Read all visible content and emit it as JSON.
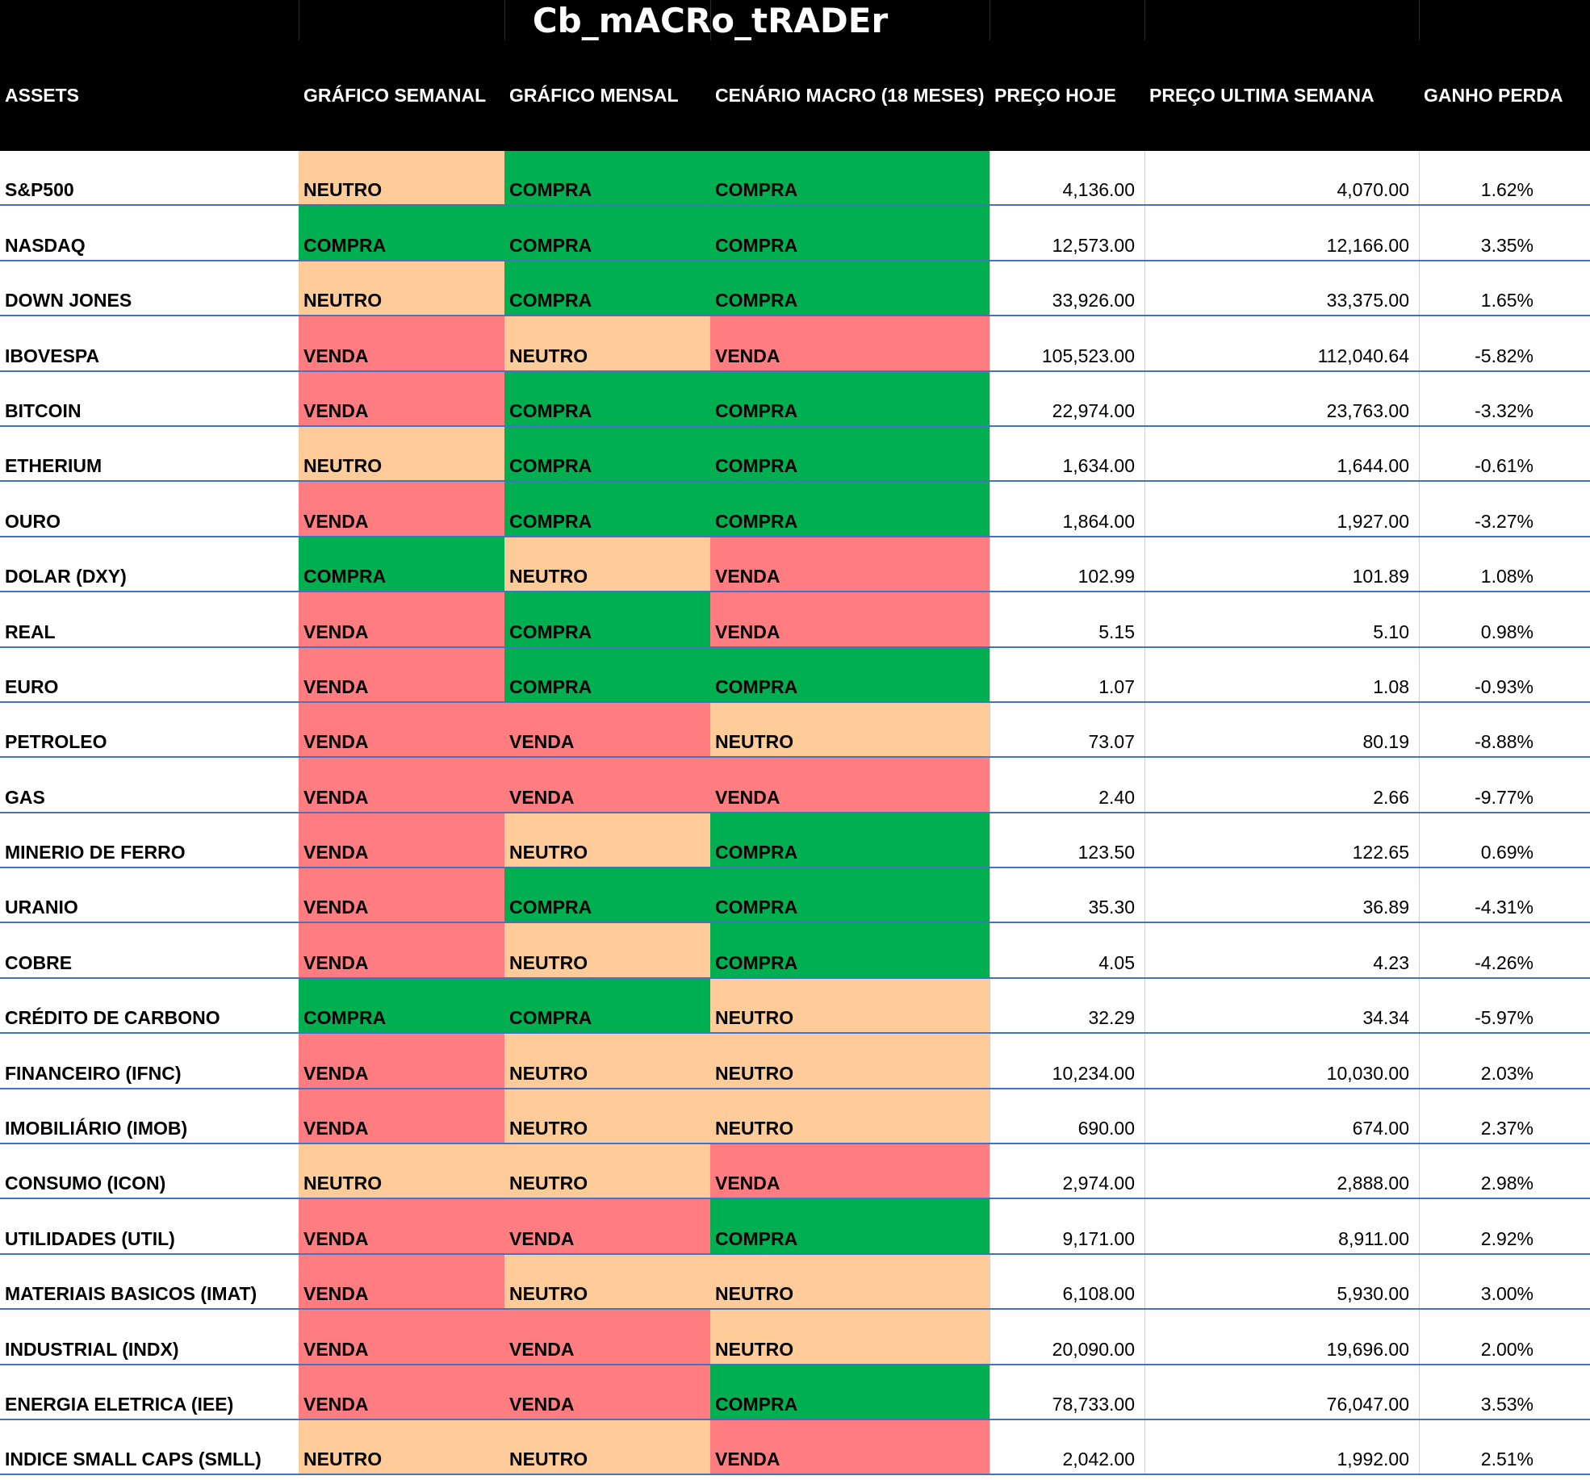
{
  "title": "Cb_mACRo_tRADEr",
  "headers": {
    "assets": "ASSETS",
    "semanal": "GRÁFICO SEMANAL",
    "mensal": "GRÁFICO MENSAL",
    "macro": "CENÁRIO MACRO (18 MESES)",
    "preco_hoje": "PREÇO HOJE",
    "preco_semana": "PREÇO ULTIMA SEMANA",
    "ganho": "GANHO PERDA"
  },
  "signal_colors": {
    "COMPRA": "#00b050",
    "NEUTRO": "#ffcc99",
    "VENDA": "#ff7c80"
  },
  "rows": [
    {
      "asset": "S&P500",
      "semanal": "NEUTRO",
      "mensal": "COMPRA",
      "macro": "COMPRA",
      "hoje": "4,136.00",
      "semana": "4,070.00",
      "ganho": "1.62%"
    },
    {
      "asset": "NASDAQ",
      "semanal": "COMPRA",
      "mensal": "COMPRA",
      "macro": "COMPRA",
      "hoje": "12,573.00",
      "semana": "12,166.00",
      "ganho": "3.35%"
    },
    {
      "asset": "DOWN JONES",
      "semanal": "NEUTRO",
      "mensal": "COMPRA",
      "macro": "COMPRA",
      "hoje": "33,926.00",
      "semana": "33,375.00",
      "ganho": "1.65%"
    },
    {
      "asset": "IBOVESPA",
      "semanal": "VENDA",
      "mensal": "NEUTRO",
      "macro": "VENDA",
      "hoje": "105,523.00",
      "semana": "112,040.64",
      "ganho": "-5.82%"
    },
    {
      "asset": "BITCOIN",
      "semanal": "VENDA",
      "mensal": "COMPRA",
      "macro": "COMPRA",
      "hoje": "22,974.00",
      "semana": "23,763.00",
      "ganho": "-3.32%"
    },
    {
      "asset": "ETHERIUM",
      "semanal": "NEUTRO",
      "mensal": "COMPRA",
      "macro": "COMPRA",
      "hoje": "1,634.00",
      "semana": "1,644.00",
      "ganho": "-0.61%"
    },
    {
      "asset": "OURO",
      "semanal": "VENDA",
      "mensal": "COMPRA",
      "macro": "COMPRA",
      "hoje": "1,864.00",
      "semana": "1,927.00",
      "ganho": "-3.27%"
    },
    {
      "asset": "DOLAR (DXY)",
      "semanal": "COMPRA",
      "mensal": "NEUTRO",
      "macro": "VENDA",
      "hoje": "102.99",
      "semana": "101.89",
      "ganho": "1.08%"
    },
    {
      "asset": "REAL",
      "semanal": "VENDA",
      "mensal": "COMPRA",
      "macro": "VENDA",
      "hoje": "5.15",
      "semana": "5.10",
      "ganho": "0.98%"
    },
    {
      "asset": "EURO",
      "semanal": "VENDA",
      "mensal": "COMPRA",
      "macro": "COMPRA",
      "hoje": "1.07",
      "semana": "1.08",
      "ganho": "-0.93%"
    },
    {
      "asset": "PETROLEO",
      "semanal": "VENDA",
      "mensal": "VENDA",
      "macro": "NEUTRO",
      "hoje": "73.07",
      "semana": "80.19",
      "ganho": "-8.88%"
    },
    {
      "asset": "GAS",
      "semanal": "VENDA",
      "mensal": "VENDA",
      "macro": "VENDA",
      "hoje": "2.40",
      "semana": "2.66",
      "ganho": "-9.77%"
    },
    {
      "asset": "MINERIO DE FERRO",
      "semanal": "VENDA",
      "mensal": "NEUTRO",
      "macro": "COMPRA",
      "hoje": "123.50",
      "semana": "122.65",
      "ganho": "0.69%"
    },
    {
      "asset": "URANIO",
      "semanal": "VENDA",
      "mensal": "COMPRA",
      "macro": "COMPRA",
      "hoje": "35.30",
      "semana": "36.89",
      "ganho": "-4.31%"
    },
    {
      "asset": "COBRE",
      "semanal": "VENDA",
      "mensal": "NEUTRO",
      "macro": "COMPRA",
      "hoje": "4.05",
      "semana": "4.23",
      "ganho": "-4.26%"
    },
    {
      "asset": "CRÉDITO DE CARBONO",
      "semanal": "COMPRA",
      "mensal": "COMPRA",
      "macro": "NEUTRO",
      "hoje": "32.29",
      "semana": "34.34",
      "ganho": "-5.97%"
    },
    {
      "asset": "FINANCEIRO (IFNC)",
      "semanal": "VENDA",
      "mensal": "NEUTRO",
      "macro": "NEUTRO",
      "hoje": "10,234.00",
      "semana": "10,030.00",
      "ganho": "2.03%"
    },
    {
      "asset": "IMOBILIÁRIO (IMOB)",
      "semanal": "VENDA",
      "mensal": "NEUTRO",
      "macro": "NEUTRO",
      "hoje": "690.00",
      "semana": "674.00",
      "ganho": "2.37%"
    },
    {
      "asset": "CONSUMO (ICON)",
      "semanal": "NEUTRO",
      "mensal": "NEUTRO",
      "macro": "VENDA",
      "hoje": "2,974.00",
      "semana": "2,888.00",
      "ganho": "2.98%"
    },
    {
      "asset": "UTILIDADES (UTIL)",
      "semanal": "VENDA",
      "mensal": "VENDA",
      "macro": "COMPRA",
      "hoje": "9,171.00",
      "semana": "8,911.00",
      "ganho": "2.92%"
    },
    {
      "asset": "MATERIAIS BASICOS (IMAT)",
      "semanal": "VENDA",
      "mensal": "NEUTRO",
      "macro": "NEUTRO",
      "hoje": "6,108.00",
      "semana": "5,930.00",
      "ganho": "3.00%"
    },
    {
      "asset": "INDUSTRIAL (INDX)",
      "semanal": "VENDA",
      "mensal": "VENDA",
      "macro": "NEUTRO",
      "hoje": "20,090.00",
      "semana": "19,696.00",
      "ganho": "2.00%"
    },
    {
      "asset": "ENERGIA ELETRICA (IEE)",
      "semanal": "VENDA",
      "mensal": "VENDA",
      "macro": "COMPRA",
      "hoje": "78,733.00",
      "semana": "76,047.00",
      "ganho": "3.53%"
    },
    {
      "asset": "INDICE SMALL CAPS (SMLL)",
      "semanal": "NEUTRO",
      "mensal": "NEUTRO",
      "macro": "VENDA",
      "hoje": "2,042.00",
      "semana": "1,992.00",
      "ganho": "2.51%"
    }
  ]
}
